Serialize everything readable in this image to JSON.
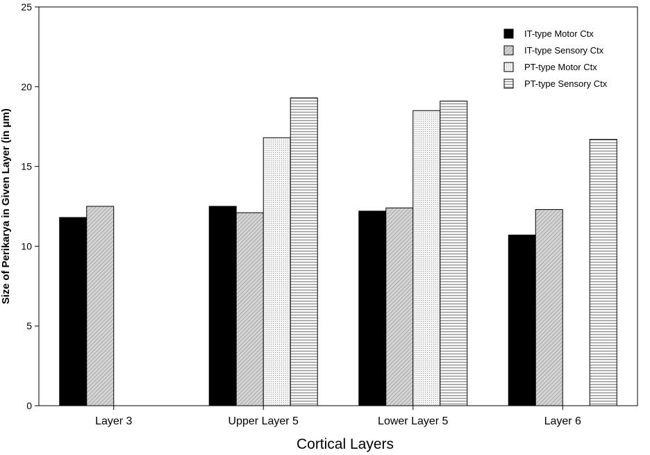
{
  "chart_data": {
    "type": "bar",
    "title": "",
    "xlabel": "Cortical Layers",
    "ylabel": "Size of Perikarya in Given Layer (in μm)",
    "ylim": [
      0,
      25
    ],
    "yticks": [
      "0",
      "5",
      "10",
      "15",
      "20",
      "25"
    ],
    "ytick_values": [
      0,
      5,
      10,
      15,
      20,
      25
    ],
    "categories": [
      "Layer 3",
      "Upper Layer 5",
      "Lower Layer 5",
      "Layer 6"
    ],
    "series": [
      {
        "name": "IT-type Motor Ctx",
        "values": [
          11.8,
          12.5,
          12.2,
          10.7
        ],
        "fill": "#000000",
        "pattern": "solid"
      },
      {
        "name": "IT-type Sensory Ctx",
        "values": [
          12.5,
          12.1,
          12.4,
          12.3
        ],
        "fill": "#c8c8c8",
        "pattern": "diagonal"
      },
      {
        "name": "PT-type Motor Ctx",
        "values": [
          null,
          16.8,
          18.5,
          null
        ],
        "fill": "#f2f2f2",
        "pattern": "dots"
      },
      {
        "name": "PT-type Sensory Ctx",
        "values": [
          null,
          19.3,
          19.1,
          16.7
        ],
        "fill": "#d9d9d9",
        "pattern": "horizontal"
      }
    ],
    "legend_position": "top-right",
    "grid": false
  }
}
